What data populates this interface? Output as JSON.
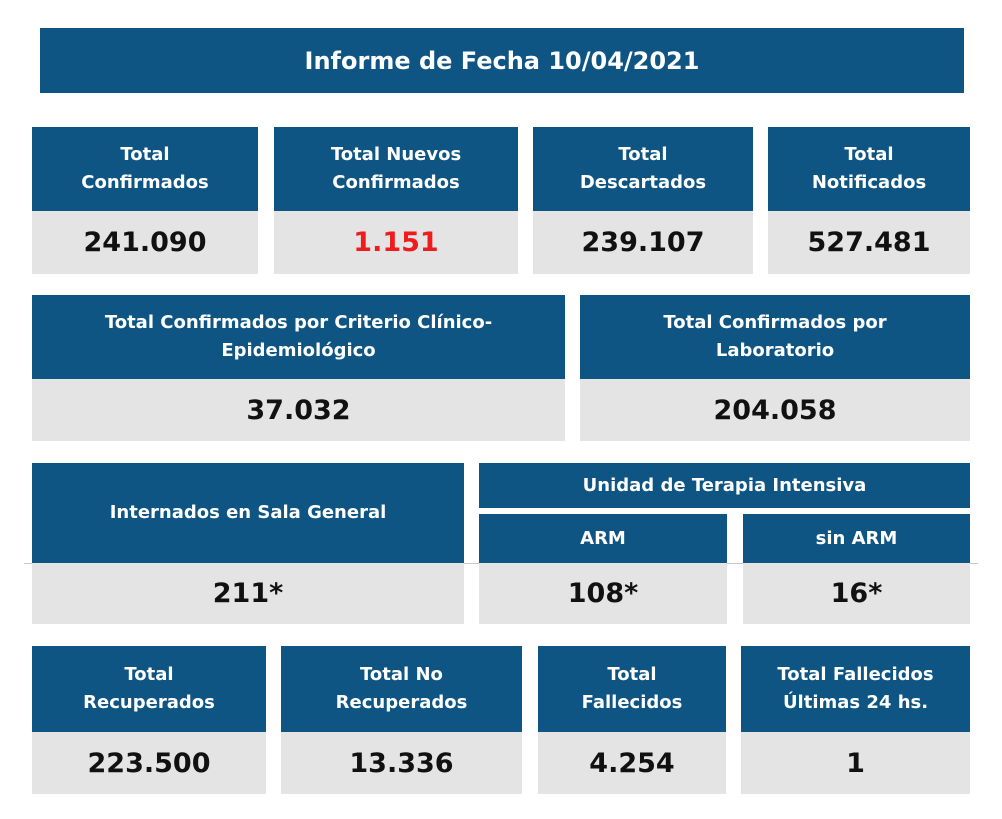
{
  "title": "Informe de Fecha 10/04/2021",
  "row1": [
    {
      "label": "Total\nConfirmados",
      "value": "241.090"
    },
    {
      "label": "Total Nuevos\nConfirmados",
      "value": "1.151"
    },
    {
      "label": "Total\nDescartados",
      "value": "239.107"
    },
    {
      "label": "Total\nNotificados",
      "value": "527.481"
    }
  ],
  "row2": [
    {
      "label": "Total Confirmados por Criterio Clínico-\nEpidemiológico",
      "value": "37.032"
    },
    {
      "label": "Total Confirmados por\nLaboratorio",
      "value": "204.058"
    }
  ],
  "row3": {
    "general_label": "Internados en Sala General",
    "general_value": "211*",
    "uti_label": "Unidad de Terapia Intensiva",
    "arm_label": "ARM",
    "arm_value": "108*",
    "sin_arm_label": "sin ARM",
    "sin_arm_value": "16*"
  },
  "row4": [
    {
      "label": "Total\nRecuperados",
      "value": "223.500"
    },
    {
      "label": "Total No\nRecuperados",
      "value": "13.336"
    },
    {
      "label": "Total\nFallecidos",
      "value": "4.254"
    },
    {
      "label": "Total Fallecidos\nÚltimas 24 hs.",
      "value": "1"
    }
  ],
  "colors": {
    "header_bg": "#0e5584",
    "value_bg": "#e4e4e4",
    "highlight": "#ee1c1c"
  }
}
